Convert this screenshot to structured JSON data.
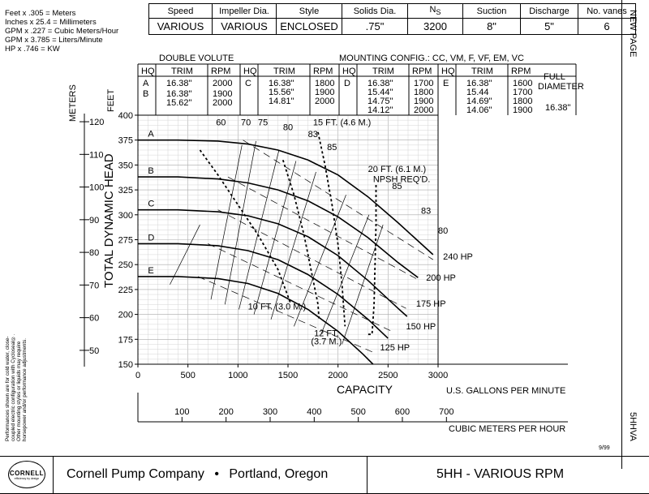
{
  "conversions": [
    "Feet x .305 = Meters",
    "Inches x 25.4 = Millimeters",
    "GPM x .227 = Cubic Meters/Hour",
    "GPM x 3.785 = Liters/Minute",
    "HP x .746 = KW"
  ],
  "spec": {
    "headers": [
      "Speed",
      "Impeller Dia.",
      "Style",
      "Solids Dia.",
      "N",
      "Suction",
      "Discharge",
      "No. vanes"
    ],
    "ns_sub": "S",
    "values": [
      "VARIOUS",
      "VARIOUS",
      "ENCLOSED",
      ".75\"",
      "3200",
      "8\"",
      "5\"",
      "6"
    ]
  },
  "side": {
    "new_page": "NEW PAGE",
    "model_code": "5HHVA"
  },
  "config": {
    "double_volute": "DOUBLE VOLUTE",
    "mounting": "MOUNTING CONFIG.:  CC,  VM,  F,  VF,  EM,  VC"
  },
  "hq_table": {
    "groups": [
      {
        "headers": [
          "HQ",
          "TRIM",
          "RPM"
        ],
        "rows": [
          {
            "hq": "A",
            "trims": [
              "16.38\""
            ],
            "rpms": [
              "2000"
            ]
          },
          {
            "hq": "B",
            "trims": [
              "16.38\"",
              "15.62\""
            ],
            "rpms": [
              "1900",
              "2000"
            ]
          }
        ]
      },
      {
        "headers": [
          "HQ",
          "TRIM",
          "RPM"
        ],
        "rows": [
          {
            "hq": "C",
            "trims": [
              "16.38\"",
              "15.56\"",
              "14.81\""
            ],
            "rpms": [
              "1800",
              "1900",
              "2000"
            ]
          }
        ]
      },
      {
        "headers": [
          "HQ",
          "TRIM",
          "RPM"
        ],
        "rows": [
          {
            "hq": "D",
            "trims": [
              "16.38\"",
              "15.44\"",
              "14.75\"",
              "14.12\""
            ],
            "rpms": [
              "1700",
              "1800",
              "1900",
              "2000"
            ]
          }
        ]
      },
      {
        "headers": [
          "HQ",
          "TRIM",
          "RPM"
        ],
        "rows": [
          {
            "hq": "E",
            "trims": [
              "16.38\"",
              "15.44",
              "14.69\"",
              "14.06\""
            ],
            "rpms": [
              "1600",
              "1700",
              "1800",
              "1900"
            ]
          }
        ]
      }
    ],
    "full_diameter_label": "FULL DIAMETER",
    "full_diameter_value": "16.38\""
  },
  "chart_data": {
    "type": "line",
    "title": "5HH - VARIOUS RPM",
    "xlabel": "CAPACITY",
    "x_unit_label": "U.S. GALLONS PER MINUTE",
    "x2_unit_label": "CUBIC METERS PER HOUR",
    "ylabel": "TOTAL DYNAMIC HEAD",
    "y_unit_feet": "FEET",
    "y_unit_meters": "METERS",
    "xlim": [
      0,
      3000
    ],
    "ylim": [
      150,
      400
    ],
    "xticks": [
      0,
      500,
      1000,
      1500,
      2000,
      2500,
      3000
    ],
    "xtick_labels": [
      "0",
      "500",
      "1000",
      "1500",
      "2000",
      "2500",
      "3000"
    ],
    "yticks": [
      150,
      175,
      200,
      225,
      250,
      275,
      300,
      325,
      350,
      375,
      400
    ],
    "ytick_labels": [
      "150",
      "175",
      "200",
      "225",
      "250",
      "275",
      "300",
      "325",
      "350",
      "375",
      "400"
    ],
    "meter_ticks": [
      50,
      60,
      70,
      80,
      90,
      100,
      110,
      120
    ],
    "meter_tick_labels": [
      "50",
      "60",
      "70",
      "80",
      "90",
      "100",
      "110",
      "120"
    ],
    "m3h_ticks": [
      100,
      200,
      300,
      400,
      500,
      600,
      700
    ],
    "m3h_tick_labels": [
      "100",
      "200",
      "300",
      "400",
      "500",
      "600",
      "700"
    ],
    "series": [
      {
        "name": "A",
        "x": [
          0,
          400,
          800,
          1100,
          1400,
          1700,
          2000,
          2300,
          2600,
          2950
        ],
        "y": [
          375,
          375,
          374,
          371,
          365,
          355,
          340,
          318,
          292,
          260
        ]
      },
      {
        "name": "B",
        "x": [
          0,
          400,
          800,
          1100,
          1400,
          1700,
          2000,
          2300,
          2600,
          2800
        ],
        "y": [
          338,
          338,
          336,
          332,
          325,
          314,
          298,
          277,
          252,
          237
        ]
      },
      {
        "name": "C",
        "x": [
          0,
          400,
          800,
          1100,
          1400,
          1700,
          2000,
          2300,
          2600,
          2690
        ],
        "y": [
          305,
          305,
          303,
          299,
          291,
          278,
          259,
          234,
          206,
          198
        ]
      },
      {
        "name": "D",
        "x": [
          0,
          400,
          800,
          1100,
          1400,
          1700,
          2000,
          2300,
          2500
        ],
        "y": [
          271,
          271,
          269,
          264,
          255,
          240,
          220,
          195,
          176
        ]
      },
      {
        "name": "E",
        "x": [
          0,
          400,
          800,
          1100,
          1400,
          1700,
          2000,
          2250,
          2350
        ],
        "y": [
          238,
          238,
          236,
          231,
          221,
          205,
          183,
          160,
          150
        ]
      }
    ],
    "curve_labels": [
      "A",
      "B",
      "C",
      "D",
      "E"
    ],
    "efficiency_labels": [
      {
        "text": "60",
        "x": 780,
        "y": 390
      },
      {
        "text": "70",
        "x": 1030,
        "y": 390
      },
      {
        "text": "75",
        "x": 1200,
        "y": 390
      },
      {
        "text": "80",
        "x": 1450,
        "y": 385
      },
      {
        "text": "83",
        "x": 1700,
        "y": 378
      },
      {
        "text": "85",
        "x": 1890,
        "y": 365
      },
      {
        "text": "85",
        "x": 2540,
        "y": 326
      },
      {
        "text": "83",
        "x": 2830,
        "y": 301
      },
      {
        "text": "80",
        "x": 3000,
        "y": 281
      }
    ],
    "hp_labels": [
      {
        "text": "240 HP",
        "x": 3050,
        "y": 255
      },
      {
        "text": "200 HP",
        "x": 2880,
        "y": 234
      },
      {
        "text": "175 HP",
        "x": 2780,
        "y": 208
      },
      {
        "text": "150 HP",
        "x": 2680,
        "y": 185
      },
      {
        "text": "125 HP",
        "x": 2420,
        "y": 164
      }
    ],
    "npsh": [
      {
        "label": "15 FT. (4.6 M.)",
        "label_x": 1750,
        "label_y": 390,
        "x": [
          1800,
          1870,
          1940,
          2000,
          2040,
          2070
        ],
        "y": [
          383,
          350,
          310,
          270,
          230,
          188
        ]
      },
      {
        "label": "20 FT. (6.1 M.)",
        "label_x": 2300,
        "label_y": 343,
        "label2": "NPSH REQ'D.",
        "label2_x": 2350,
        "label2_y": 333,
        "x": [
          2380,
          2380,
          2370,
          2360,
          2340,
          2300
        ],
        "y": [
          330,
          290,
          250,
          210,
          180,
          180
        ]
      },
      {
        "label": "12 FT.",
        "label_x": 1760,
        "label_y": 178,
        "label2": "(3.7 M.)",
        "label2_x": 1730,
        "label2_y": 170,
        "x": [
          1450,
          1560,
          1660,
          1740,
          1800,
          1810
        ],
        "y": [
          355,
          320,
          280,
          240,
          210,
          196
        ]
      },
      {
        "label": "10 FT. (3.0 M.)",
        "label_x": 1100,
        "label_y": 205,
        "x": [
          620,
          800,
          1000,
          1200,
          1400,
          1530
        ],
        "y": [
          365,
          340,
          310,
          280,
          245,
          210
        ]
      }
    ]
  },
  "disclaimer": [
    "Performances shown are for cold water, close-",
    "coupled electric configuration with Cycloseal®.",
    "Other mounting styles or liquids may require",
    "horsepower and/or performance adjustments."
  ],
  "date_code": "9/99",
  "footer": {
    "logo_text": "CORNELL",
    "logo_tagline": "efficiency by design",
    "company": "Cornell Pump Company",
    "bullet": "•",
    "location": "Portland, Oregon",
    "model": "5HH - VARIOUS RPM"
  }
}
